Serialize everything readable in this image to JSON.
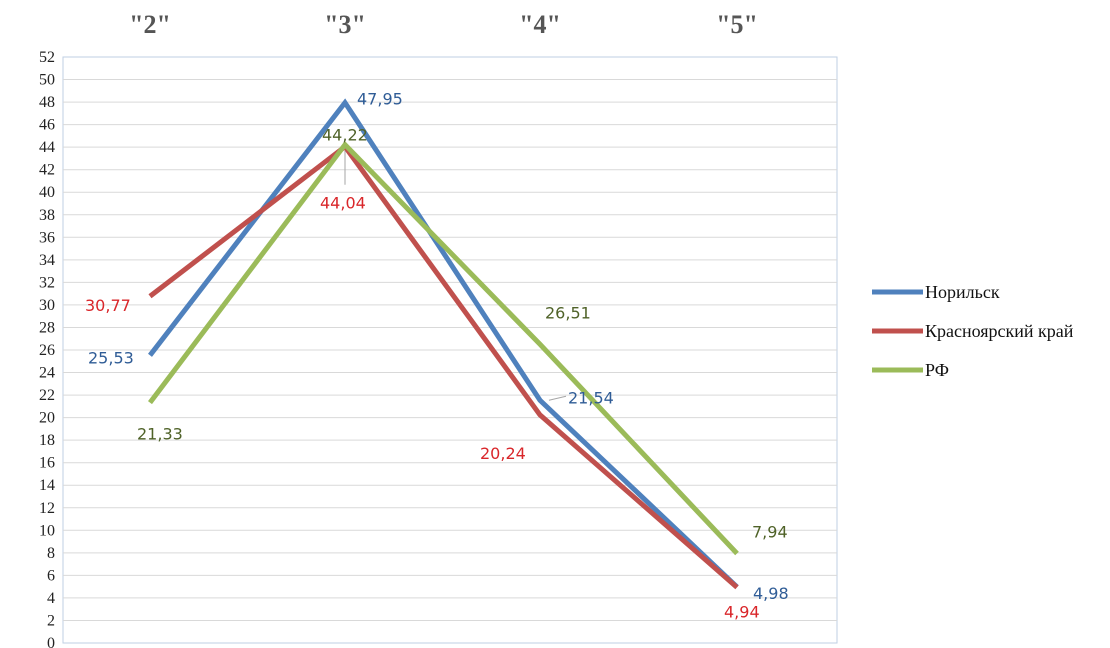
{
  "chart_data": {
    "type": "line",
    "categories": [
      "\"2\"",
      "\"3\"",
      "\"4\"",
      "\"5\""
    ],
    "ylim": [
      0,
      52
    ],
    "y_tick_step": 2,
    "grid": true,
    "legend_placement": "right",
    "series": [
      {
        "name": "Норильск",
        "color": "#4f81bd",
        "values": [
          25.53,
          47.95,
          21.54,
          4.98
        ],
        "labels": [
          "25,53",
          "47,95",
          "21,54",
          "4,98"
        ],
        "label_color": "#2f5c96"
      },
      {
        "name": "Красноярский край",
        "color": "#c0504d",
        "values": [
          30.77,
          44.04,
          20.24,
          4.94
        ],
        "labels": [
          "30,77",
          "44,04",
          "20,24",
          "4,94"
        ],
        "label_color": "#d9262a"
      },
      {
        "name": "РФ",
        "color": "#9bbb59",
        "values": [
          21.33,
          44.22,
          26.51,
          7.94
        ],
        "labels": [
          "21,33",
          "44,22",
          "26,51",
          "7,94"
        ],
        "label_color": "#4f6228"
      }
    ]
  }
}
